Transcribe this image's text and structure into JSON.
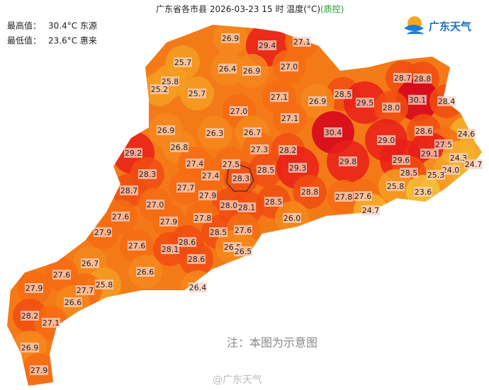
{
  "header": {
    "title": "广东省各市县 2026-03-23 15 时 温度(°C)",
    "qc": "(质控)"
  },
  "stats": {
    "max_label": "最高值：",
    "max_value": "30.4°C 东源",
    "min_label": "最低值：",
    "min_value": "23.6°C 惠来"
  },
  "logo": "广东天气",
  "note": "注：本图为示意图",
  "watermark": "@广东天气",
  "stations": [
    "26.9",
    "29.4",
    "27.1",
    "25.7",
    "26.4",
    "26.9",
    "27.0",
    "25.8",
    "25.2",
    "25.7",
    "28.7",
    "28.8",
    "28.5",
    "27.1",
    "26.9",
    "29.5",
    "30.1",
    "28.4",
    "28.0",
    "27.0",
    "27.1",
    "26.9",
    "26.3",
    "26.7",
    "30.4",
    "28.6",
    "24.6",
    "29.0",
    "29.2",
    "26.8",
    "27.3",
    "28.2",
    "27.5",
    "27.4",
    "27.5",
    "29.8",
    "29.6",
    "29.1",
    "24.3",
    "24.7",
    "28.3",
    "27.4",
    "28.3",
    "28.5",
    "29.3",
    "24.0",
    "25.3",
    "28.5",
    "27.7",
    "25.8",
    "23.6",
    "28.7",
    "27.9",
    "28.8",
    "27.8",
    "27.6",
    "27.0",
    "28.0",
    "28.1",
    "28.5",
    "24.7",
    "27.6",
    "26.0",
    "27.9",
    "27.8",
    "27.9",
    "28.5",
    "27.6",
    "27.6",
    "28.6",
    "26.5",
    "26.5",
    "28.1",
    "26.7",
    "28.6",
    "26.6",
    "27.6",
    "25.8",
    "27.7",
    "27.9",
    "26.4",
    "26.6",
    "28.2",
    "27.1",
    "26.9",
    "27.9"
  ]
}
